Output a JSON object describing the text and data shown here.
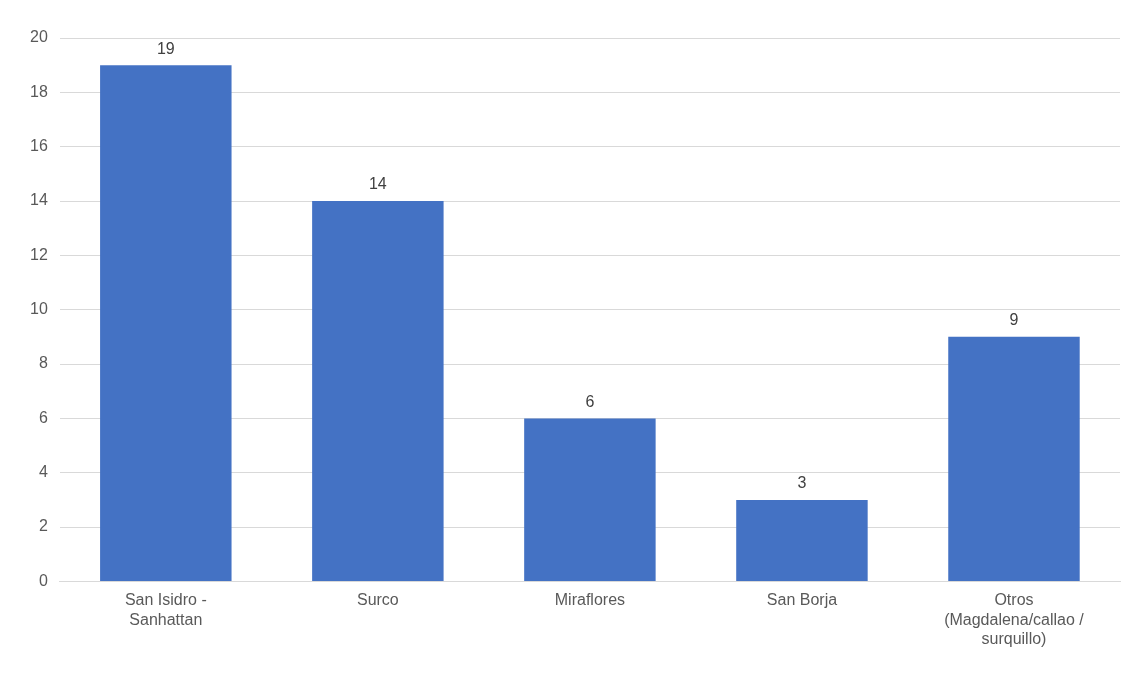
{
  "chart_data": {
    "type": "bar",
    "categories": [
      "San Isidro - Sanhattan",
      "Surco",
      "Miraflores",
      "San Borja",
      "Otros (Magdalena/callao / surquillo)"
    ],
    "values": [
      19,
      14,
      6,
      3,
      9
    ],
    "color": "#4472c4",
    "ylim": [
      0,
      20
    ],
    "yticks": [
      0,
      2,
      4,
      6,
      8,
      10,
      12,
      14,
      16,
      18,
      20
    ],
    "grid": "y",
    "data_labels": true,
    "legend": false
  }
}
